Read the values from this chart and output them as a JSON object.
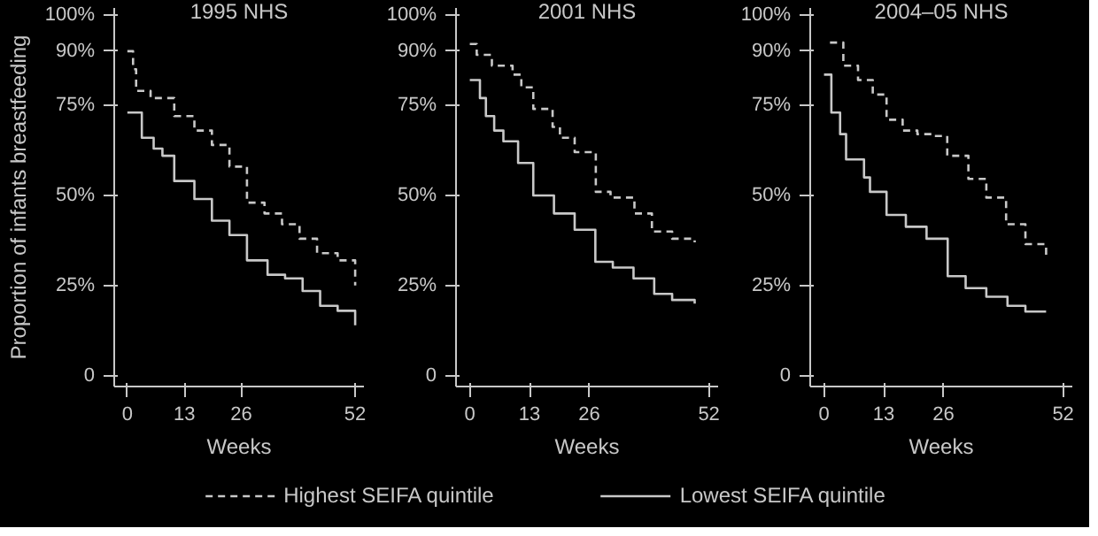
{
  "chart_data": [
    {
      "type": "step",
      "title": "1995 NHS",
      "xlabel": "Weeks",
      "ylabel": "Proportion of infants breastfeeding",
      "xlim": [
        -3,
        54
      ],
      "ylim": [
        -3,
        102
      ],
      "xticks": [
        0,
        13,
        26,
        52
      ],
      "yticks": [
        0,
        {
          "value": 25,
          "label": "25%"
        },
        {
          "value": 50,
          "label": "50%"
        },
        {
          "value": 75,
          "label": "75%"
        },
        {
          "value": 90,
          "label": "90%"
        },
        {
          "value": 100,
          "label": "100%"
        }
      ],
      "legend": "bottom",
      "grid": false,
      "series": [
        {
          "name": "Highest SEIFA quintile",
          "color": "#c8c8c8",
          "line_style": "dashed",
          "x": [
            0,
            1.3,
            2,
            5.3,
            10.7,
            15.3,
            19.3,
            23.3,
            27.3,
            31.3,
            35.3,
            39.3,
            43.3,
            48,
            52
          ],
          "values": [
            90,
            85,
            79,
            77,
            72,
            68,
            64,
            58,
            48,
            45,
            42,
            38,
            34,
            32,
            25
          ]
        },
        {
          "name": "Lowest SEIFA quintile",
          "color": "#c8c8c8",
          "line_style": "solid",
          "x": [
            0,
            3.3,
            6,
            8,
            10.7,
            15.3,
            19.3,
            23.3,
            27.3,
            32,
            36,
            40,
            44,
            48,
            52
          ],
          "values": [
            73,
            66,
            63,
            61,
            54,
            49,
            43,
            39,
            32,
            28,
            27,
            23.5,
            19.4,
            18,
            14
          ]
        }
      ]
    },
    {
      "type": "step",
      "title": "2001 NHS",
      "xlabel": "Weeks",
      "xlim": [
        -3,
        54
      ],
      "ylim": [
        -3,
        102
      ],
      "xticks": [
        0,
        13,
        26,
        52
      ],
      "yticks": [
        0,
        {
          "value": 25,
          "label": "25%"
        },
        {
          "value": 50,
          "label": "50%"
        },
        {
          "value": 75,
          "label": "75%"
        },
        {
          "value": 90,
          "label": "90%"
        },
        {
          "value": 100,
          "label": "100%"
        }
      ],
      "grid": false,
      "series": [
        {
          "color": "#c8c8c8",
          "line_style": "dashed",
          "x": [
            0,
            1.5,
            4.8,
            9.3,
            11.2,
            13.8,
            18,
            19.6,
            22.8,
            27.4,
            30.6,
            35.8,
            39.6,
            44,
            48.9
          ],
          "values": [
            92,
            89,
            86,
            83.5,
            80,
            74,
            69,
            66,
            62,
            51,
            49.4,
            45,
            40,
            38,
            37
          ]
        },
        {
          "color": "#c8c8c8",
          "line_style": "solid",
          "x": [
            0,
            2.2,
            3.5,
            5.3,
            7.3,
            10.5,
            13.8,
            18.3,
            22.8,
            27.3,
            31.1,
            35.6,
            40.1,
            44,
            48.9
          ],
          "values": [
            82,
            77,
            72,
            68,
            65,
            59,
            50,
            45,
            40.5,
            31.6,
            30,
            27,
            22.7,
            21,
            20
          ]
        }
      ]
    },
    {
      "type": "step",
      "title": "2004–05 NHS",
      "xlabel": "Weeks",
      "xlim": [
        -3,
        54
      ],
      "ylim": [
        -3,
        102
      ],
      "xticks": [
        0,
        13,
        26,
        52
      ],
      "yticks": [
        0,
        {
          "value": 25,
          "label": "25%"
        },
        {
          "value": 50,
          "label": "50%"
        },
        {
          "value": 75,
          "label": "75%"
        },
        {
          "value": 90,
          "label": "90%"
        },
        {
          "value": 100,
          "label": "100%"
        }
      ],
      "grid": false,
      "series": [
        {
          "color": "#c8c8c8",
          "line_style": "dashed",
          "x": [
            1.3,
            4.2,
            7.4,
            10.6,
            13.6,
            17.1,
            20.3,
            23.6,
            26.8,
            31.4,
            35.3,
            39.6,
            43.8,
            48.3
          ],
          "values": [
            92.4,
            86,
            82,
            78,
            71,
            68,
            67,
            66.5,
            61,
            54.6,
            49.4,
            42,
            36.5,
            32.4
          ]
        },
        {
          "color": "#c8c8c8",
          "line_style": "solid",
          "x": [
            0,
            1.6,
            3.5,
            4.8,
            8.7,
            10,
            13.6,
            17.8,
            22.3,
            26.9,
            30.8,
            35.3,
            39.9,
            43.8,
            48.3
          ],
          "values": [
            83.5,
            73,
            67,
            60,
            55,
            51,
            44.6,
            41.3,
            38,
            27.6,
            24.3,
            21.9,
            19.4,
            17.8,
            17.8
          ]
        }
      ]
    }
  ]
}
